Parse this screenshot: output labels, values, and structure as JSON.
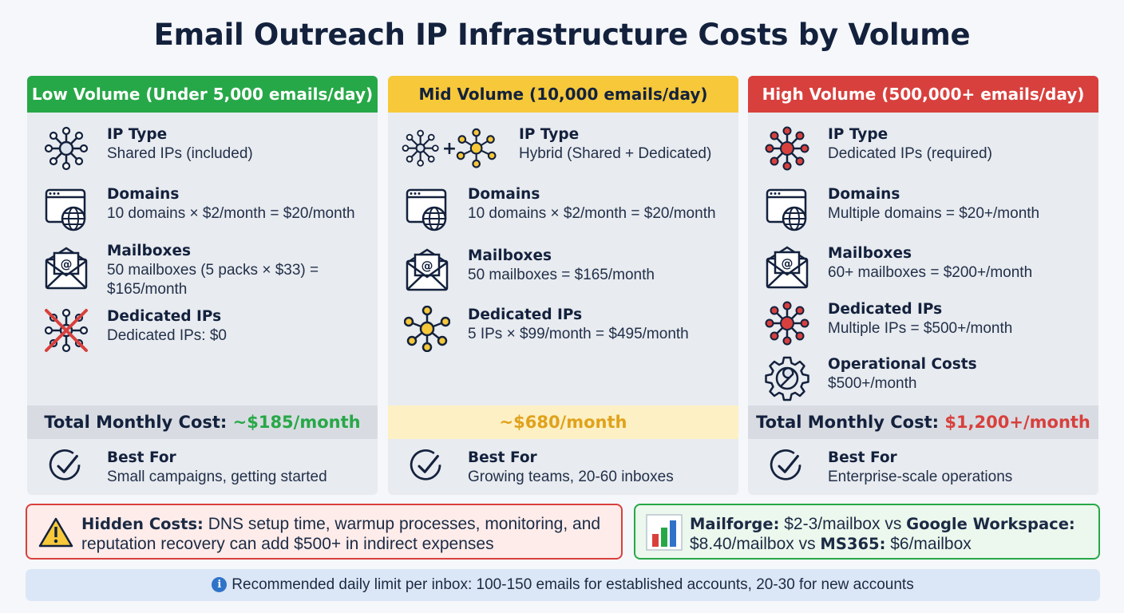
{
  "title": "Email Outreach IP Infrastructure Costs by Volume",
  "colors": {
    "low": "#27a848",
    "mid": "#f6c83a",
    "high": "#d8403d",
    "navy": "#13213d",
    "low_total": "#27a848",
    "mid_total": "#e0a21c",
    "high_total": "#d8403d"
  },
  "low": {
    "header": "Low Volume (Under 5,000 emails/day)",
    "ip_type_heading": "IP Type",
    "ip_type_value": "Shared IPs (included)",
    "domains_heading": "Domains",
    "domains_value": "10 domains × $2/month = $20/month",
    "mailboxes_heading": "Mailboxes",
    "mailboxes_value": "50 mailboxes (5 packs × $33) = $165/month",
    "dedicated_heading": "Dedicated IPs",
    "dedicated_value": "Dedicated IPs: $0",
    "total_label": "Total Monthly Cost:",
    "total_value": "~$185/month",
    "best_heading": "Best For",
    "best_value": "Small campaigns, getting started"
  },
  "mid": {
    "header": "Mid Volume (10,000 emails/day)",
    "ip_type_heading": "IP Type",
    "ip_type_value": "Hybrid (Shared + Dedicated)",
    "domains_heading": "Domains",
    "domains_value": "10 domains × $2/month = $20/month",
    "mailboxes_heading": "Mailboxes",
    "mailboxes_value": "50 mailboxes = $165/month",
    "dedicated_heading": "Dedicated IPs",
    "dedicated_value": "5 IPs × $99/month = $495/month",
    "total_value": "~$680/month",
    "best_heading": "Best For",
    "best_value": "Growing teams, 20-60 inboxes"
  },
  "high": {
    "header": "High Volume (500,000+ emails/day)",
    "ip_type_heading": "IP Type",
    "ip_type_value": "Dedicated IPs (required)",
    "domains_heading": "Domains",
    "domains_value": "Multiple domains = $20+/month",
    "mailboxes_heading": "Mailboxes",
    "mailboxes_value": "60+ mailboxes = $200+/month",
    "dedicated_heading": "Dedicated IPs",
    "dedicated_value": "Multiple IPs = $500+/month",
    "ops_heading": "Operational Costs",
    "ops_value": "$500+/month",
    "total_label": "Total Monthly Cost:",
    "total_value": "$1,200+/month",
    "best_heading": "Best For",
    "best_value": "Enterprise-scale operations"
  },
  "hidden": {
    "label": "Hidden Costs:",
    "text_line1": " DNS setup time, warmup processes, monitoring, and",
    "text_line2": "reputation recovery can add $500+ in indirect expenses"
  },
  "compare": {
    "mailforge": "Mailforge:",
    "mailforge_price": " $2-3/mailbox vs ",
    "google": "Google Workspace:",
    "google_price": "$8.40/mailbox vs ",
    "ms": "MS365:",
    "ms_price": " $6/mailbox"
  },
  "info": {
    "icon_glyph": "i",
    "text": "Recommended daily limit per inbox: 100-150 emails for established accounts, 20-30 for new accounts"
  },
  "icons": [
    "network-icon",
    "browser-globe-icon",
    "envelope-at-icon",
    "network-crossed-icon",
    "check-circle-icon",
    "gear-wrench-icon",
    "warning-icon",
    "bar-chart-icon",
    "info-icon"
  ]
}
